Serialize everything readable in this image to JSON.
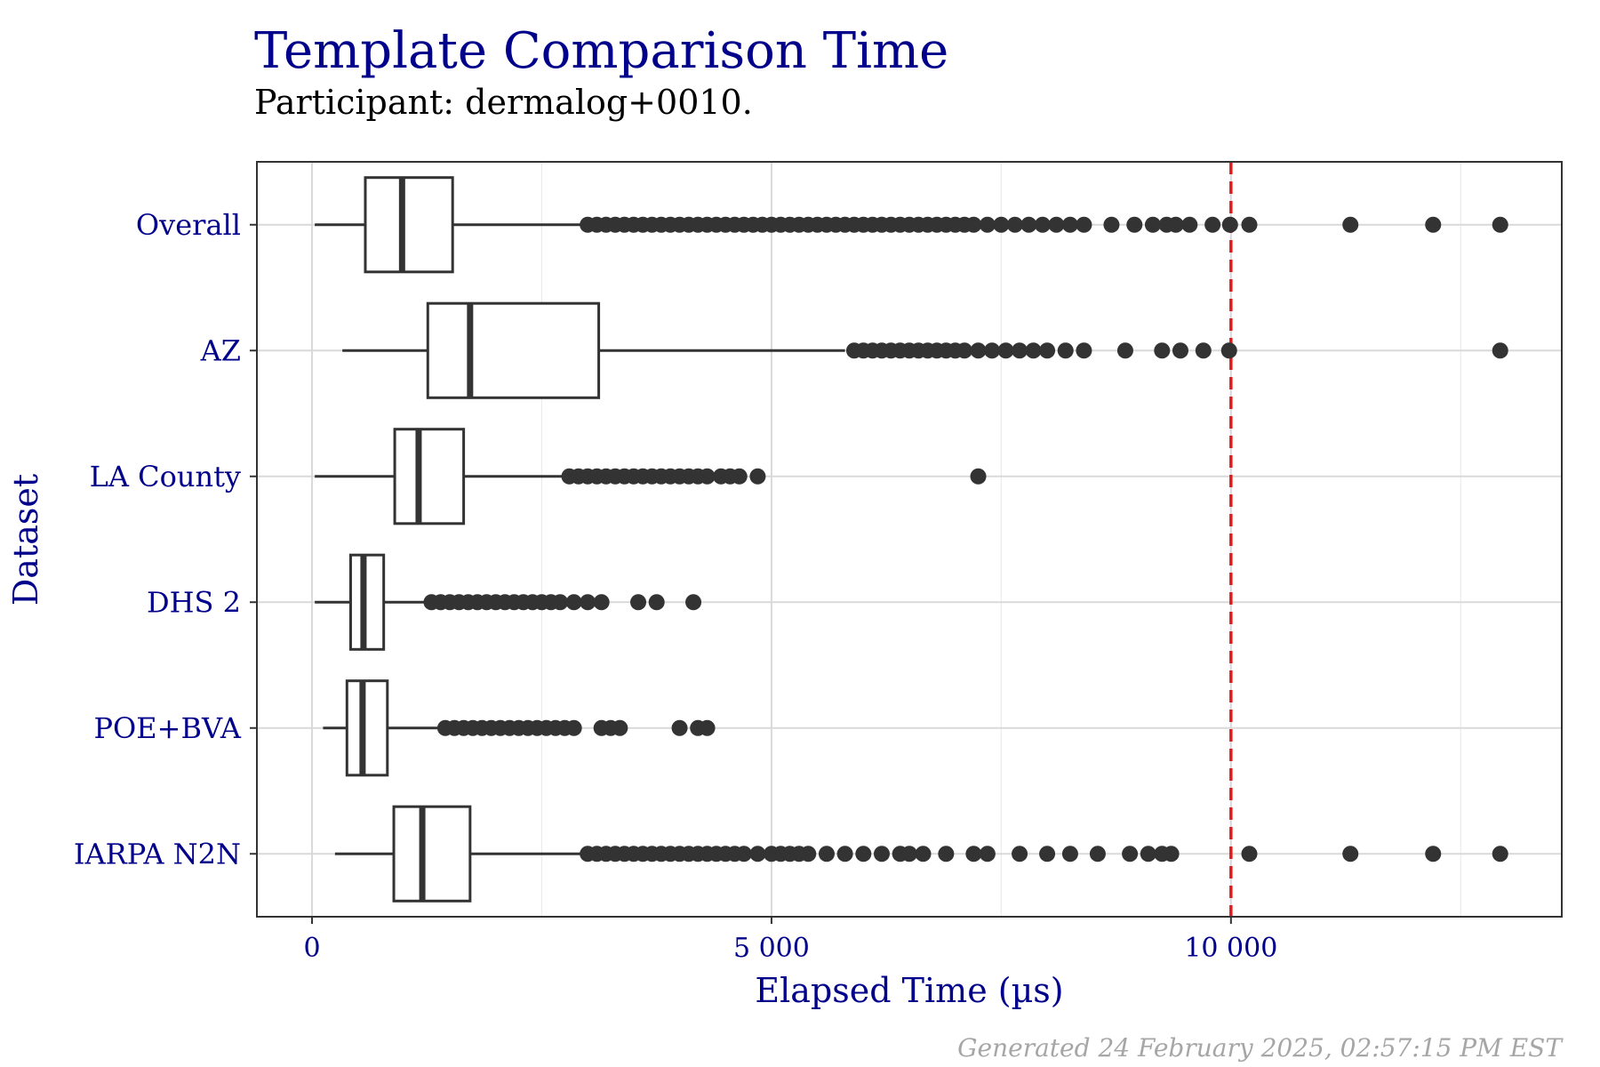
{
  "chart_data": {
    "type": "boxplot",
    "title": "Template Comparison Time",
    "subtitle": "Participant: dermalog+0010.",
    "xlabel": "Elapsed Time (µs)",
    "ylabel": "Dataset",
    "xlim": [
      -600,
      13600
    ],
    "x_ticks": [
      0,
      5000,
      10000
    ],
    "x_tick_labels": [
      "0",
      "5 000",
      "10 000"
    ],
    "grid": true,
    "reference_line": {
      "x": 10000,
      "color": "#e31a1c",
      "style": "dashed"
    },
    "footer": "Generated 24 February 2025, 02:57:15 PM EST",
    "colors": {
      "title": "#00008b",
      "axis_text": "#00008b",
      "box": "#333333",
      "grid": "#d9d9d9",
      "footer": "#a6a6a6"
    },
    "categories": [
      "Overall",
      "AZ",
      "LA County",
      "DHS 2",
      "POE+BVA",
      "IARPA N2N"
    ],
    "series": [
      {
        "category": "Overall",
        "whisker_low": 30,
        "q1": 580,
        "median": 980,
        "q3": 1530,
        "whisker_high": 2950,
        "outliers": [
          3000,
          3100,
          3200,
          3300,
          3400,
          3500,
          3600,
          3700,
          3800,
          3900,
          4000,
          4100,
          4200,
          4300,
          4400,
          4500,
          4600,
          4700,
          4800,
          4900,
          5000,
          5100,
          5200,
          5300,
          5400,
          5500,
          5600,
          5700,
          5800,
          5900,
          6000,
          6100,
          6200,
          6300,
          6400,
          6500,
          6600,
          6700,
          6800,
          6900,
          7000,
          7100,
          7200,
          7350,
          7500,
          7650,
          7800,
          7950,
          8100,
          8250,
          8400,
          8700,
          8950,
          9150,
          9300,
          9400,
          9550,
          9800,
          9990,
          10200,
          11300,
          12200,
          12930
        ]
      },
      {
        "category": "AZ",
        "whisker_low": 330,
        "q1": 1260,
        "median": 1720,
        "q3": 3120,
        "whisker_high": 5800,
        "outliers": [
          5900,
          6000,
          6100,
          6200,
          6300,
          6400,
          6500,
          6600,
          6700,
          6800,
          6900,
          7000,
          7100,
          7250,
          7400,
          7550,
          7700,
          7850,
          8000,
          8200,
          8400,
          8850,
          9250,
          9450,
          9700,
          9980,
          12930
        ]
      },
      {
        "category": "LA County",
        "whisker_low": 30,
        "q1": 900,
        "median": 1160,
        "q3": 1650,
        "whisker_high": 2750,
        "outliers": [
          2800,
          2900,
          3000,
          3100,
          3200,
          3300,
          3400,
          3500,
          3600,
          3700,
          3800,
          3900,
          4000,
          4100,
          4200,
          4300,
          4450,
          4550,
          4650,
          4850,
          7250
        ]
      },
      {
        "category": "DHS 2",
        "whisker_low": 30,
        "q1": 420,
        "median": 560,
        "q3": 780,
        "whisker_high": 1250,
        "outliers": [
          1300,
          1400,
          1500,
          1600,
          1700,
          1800,
          1900,
          2000,
          2100,
          2200,
          2300,
          2400,
          2500,
          2600,
          2700,
          2850,
          3000,
          3150,
          3550,
          3750,
          4150
        ]
      },
      {
        "category": "POE+BVA",
        "whisker_low": 120,
        "q1": 380,
        "median": 550,
        "q3": 820,
        "whisker_high": 1400,
        "outliers": [
          1450,
          1550,
          1650,
          1750,
          1850,
          1950,
          2050,
          2150,
          2250,
          2350,
          2450,
          2550,
          2650,
          2750,
          2850,
          3150,
          3250,
          3350,
          4000,
          4200,
          4300
        ]
      },
      {
        "category": "IARPA N2N",
        "whisker_low": 250,
        "q1": 890,
        "median": 1200,
        "q3": 1720,
        "whisker_high": 2950,
        "outliers": [
          3000,
          3100,
          3200,
          3300,
          3400,
          3500,
          3600,
          3700,
          3800,
          3900,
          4000,
          4100,
          4200,
          4300,
          4400,
          4500,
          4600,
          4700,
          4850,
          5000,
          5100,
          5200,
          5300,
          5400,
          5600,
          5800,
          6000,
          6200,
          6400,
          6500,
          6650,
          6900,
          7200,
          7350,
          7700,
          8000,
          8250,
          8550,
          8900,
          9100,
          9250,
          9350,
          10200,
          11300,
          12200,
          12930
        ]
      }
    ]
  }
}
